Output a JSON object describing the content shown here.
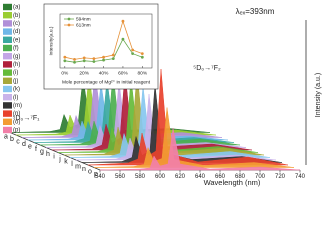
{
  "chart_data": [
    {
      "type": "waterfall",
      "title": "λₑₓ=393nm",
      "x_label": "Wavelength (nm)",
      "y_label": "Intensity (a.u.)",
      "annotations": [
        "⁵D₀→⁷F₂",
        "⁵D₀→⁷F₁"
      ],
      "depth_labels": [
        "a",
        "b",
        "c",
        "d",
        "e",
        "f",
        "g",
        "h",
        "i",
        "j",
        "k",
        "l",
        "m",
        "n",
        "o",
        "p"
      ],
      "x": [
        540,
        580,
        590,
        594,
        600,
        608,
        613,
        620,
        650,
        700,
        740
      ],
      "xlim": [
        540,
        740
      ],
      "xticks": [
        540,
        560,
        580,
        600,
        620,
        640,
        660,
        680,
        700,
        720,
        740
      ],
      "ylim": [
        0,
        100
      ],
      "series": [
        {
          "name": "(a)",
          "color": "#2f7d32",
          "values": [
            0,
            1,
            3,
            18,
            5,
            8,
            55,
            7,
            2,
            4,
            0
          ]
        },
        {
          "name": "(b)",
          "color": "#9acd32",
          "values": [
            0,
            1,
            3,
            20,
            6,
            9,
            60,
            8,
            2,
            5,
            0
          ]
        },
        {
          "name": "(c)",
          "color": "#b08fd8",
          "values": [
            0,
            1,
            4,
            22,
            6,
            10,
            66,
            9,
            2,
            5,
            0
          ]
        },
        {
          "name": "(d)",
          "color": "#6fb7e8",
          "values": [
            0,
            1,
            3,
            19,
            5,
            9,
            57,
            8,
            2,
            4,
            0
          ]
        },
        {
          "name": "(e)",
          "color": "#3aa8a0",
          "values": [
            0,
            1,
            4,
            21,
            6,
            10,
            63,
            8,
            2,
            5,
            0
          ]
        },
        {
          "name": "(f)",
          "color": "#4caf50",
          "values": [
            0,
            1,
            4,
            24,
            7,
            11,
            72,
            9,
            2,
            6,
            0
          ]
        },
        {
          "name": "(g)",
          "color": "#c3a6e6",
          "values": [
            0,
            1,
            4,
            22,
            6,
            10,
            66,
            9,
            2,
            5,
            0
          ]
        },
        {
          "name": "(h)",
          "color": "#b0203a",
          "values": [
            0,
            1,
            5,
            26,
            7,
            12,
            78,
            10,
            3,
            6,
            0
          ]
        },
        {
          "name": "(i)",
          "color": "#66bb3a",
          "values": [
            0,
            1,
            4,
            25,
            7,
            11,
            75,
            10,
            2,
            6,
            0
          ]
        },
        {
          "name": "(j)",
          "color": "#a8a838",
          "values": [
            0,
            1,
            5,
            28,
            8,
            13,
            84,
            11,
            3,
            7,
            0
          ]
        },
        {
          "name": "(k)",
          "color": "#87c7ef",
          "values": [
            0,
            1,
            4,
            24,
            7,
            11,
            72,
            9,
            2,
            6,
            0
          ]
        },
        {
          "name": "(l)",
          "color": "#c9b3ea",
          "values": [
            0,
            1,
            4,
            22,
            6,
            10,
            66,
            9,
            2,
            5,
            0
          ]
        },
        {
          "name": "(m)",
          "color": "#333333",
          "values": [
            0,
            1,
            5,
            26,
            7,
            12,
            78,
            10,
            3,
            6,
            0
          ]
        },
        {
          "name": "(n)",
          "color": "#e8412c",
          "values": [
            0,
            2,
            6,
            32,
            9,
            14,
            96,
            12,
            3,
            8,
            0
          ]
        },
        {
          "name": "(o)",
          "color": "#f39c33",
          "values": [
            0,
            1,
            3,
            20,
            6,
            9,
            60,
            8,
            2,
            5,
            0
          ]
        },
        {
          "name": "(p)",
          "color": "#f27fa8",
          "values": [
            0,
            1,
            2,
            14,
            4,
            6,
            42,
            6,
            1,
            3,
            0
          ]
        }
      ]
    },
    {
      "type": "line",
      "x_label": "Mole percentage of Mg²⁺ in initial reagent",
      "y_label": "Intensity(a.u.)",
      "x": [
        0,
        10,
        20,
        30,
        40,
        50,
        60,
        70,
        80
      ],
      "xlim": [
        -5,
        90
      ],
      "ylim": [
        0.3,
        1.05
      ],
      "xticks": [
        {
          "value": 0,
          "label": "0%"
        },
        {
          "value": 20,
          "label": "20%"
        },
        {
          "value": 40,
          "label": "40%"
        },
        {
          "value": 60,
          "label": "60%"
        },
        {
          "value": 80,
          "label": "80%"
        }
      ],
      "series": [
        {
          "name": "594nm",
          "color": "#6aa84f",
          "values": [
            0.4,
            0.38,
            0.4,
            0.39,
            0.41,
            0.43,
            0.7,
            0.5,
            0.45
          ]
        },
        {
          "name": "613nm",
          "color": "#e69138",
          "values": [
            0.45,
            0.42,
            0.44,
            0.43,
            0.45,
            0.48,
            0.95,
            0.55,
            0.5
          ]
        }
      ]
    }
  ]
}
